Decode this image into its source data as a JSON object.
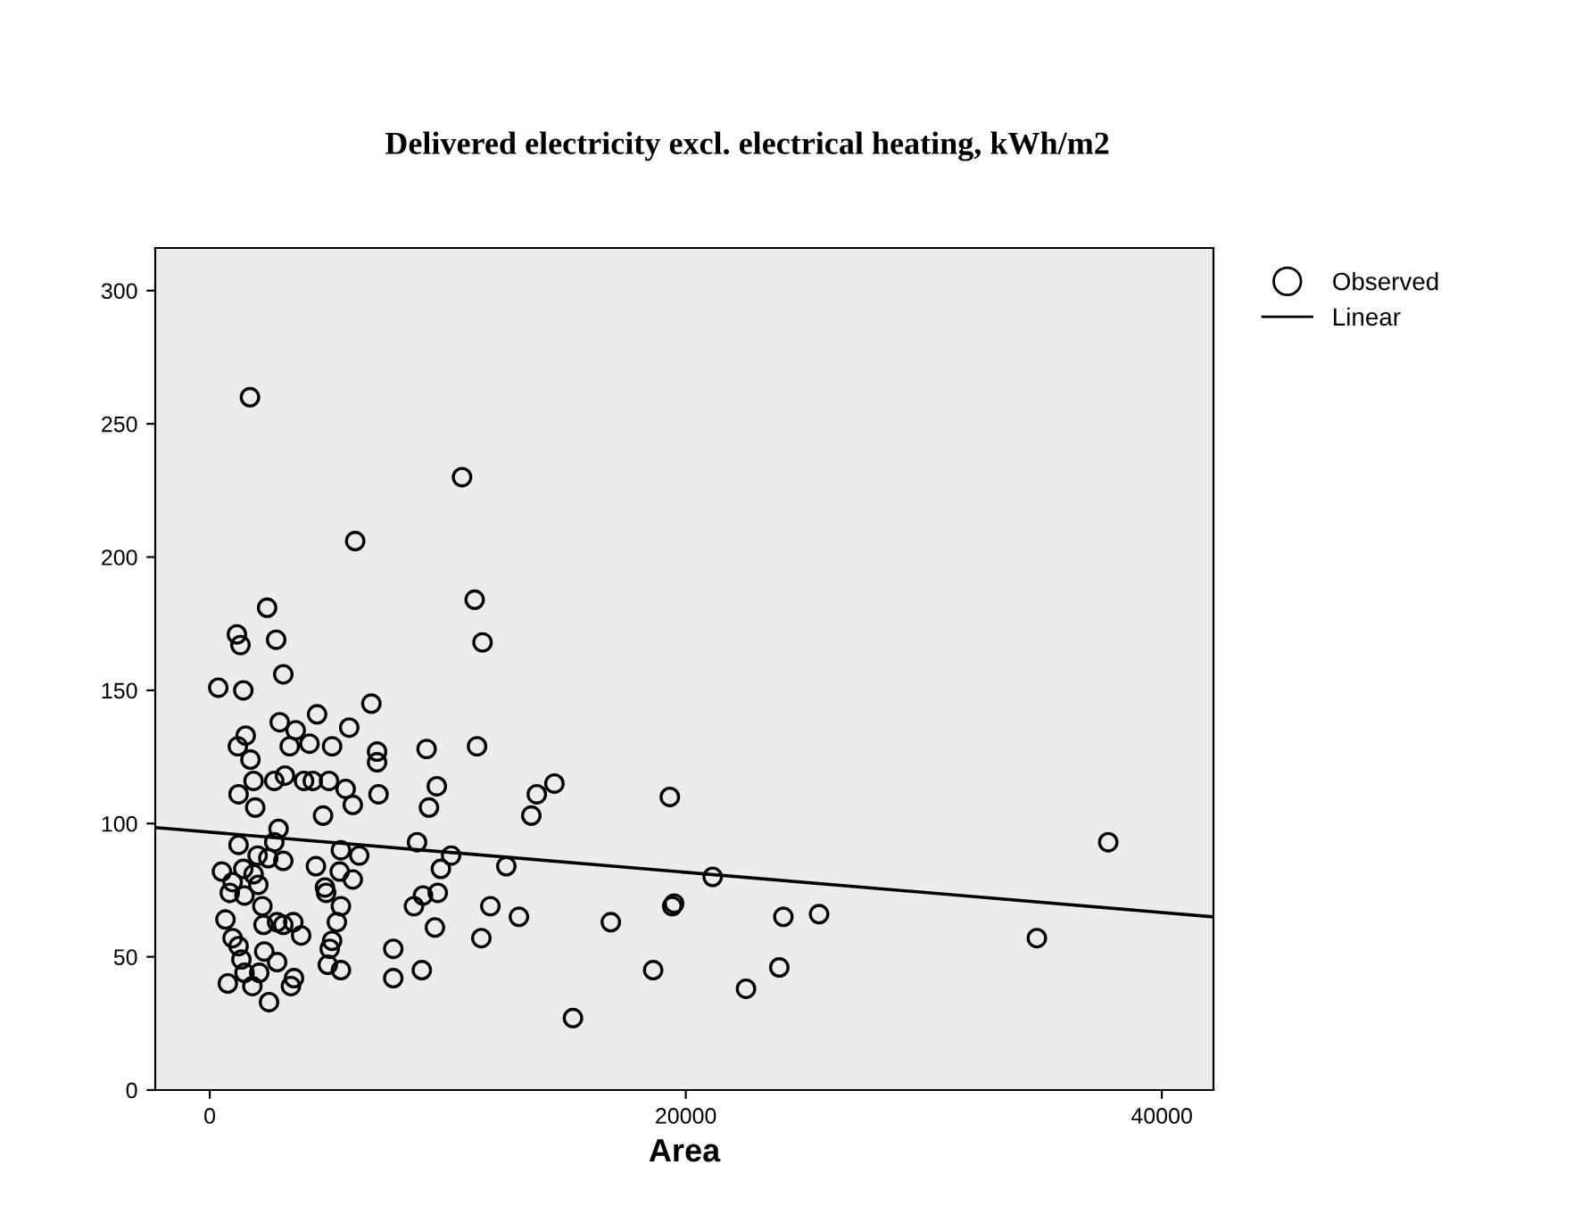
{
  "chart_data": {
    "type": "scatter",
    "title": "Delivered electricity excl. electrical heating, kWh/m2",
    "xlabel": "Area",
    "xlim": [
      -2290,
      42170
    ],
    "ylim": [
      0,
      316
    ],
    "xticks": [
      0,
      20000,
      40000
    ],
    "yticks": [
      0,
      50,
      100,
      150,
      200,
      250,
      300
    ],
    "grid": false,
    "legend": "top right",
    "series": [
      {
        "name": "Observed",
        "marker": "circle",
        "color": "#000000",
        "x": [
          1690,
          10600,
          6110,
          11130,
          2410,
          1140,
          1290,
          2790,
          11460,
          3090,
          360,
          1410,
          4510,
          6790,
          2940,
          3610,
          1510,
          5860,
          1180,
          3360,
          4190,
          5140,
          7030,
          9110,
          11230,
          1710,
          7030,
          1840,
          2710,
          3160,
          3960,
          4330,
          5010,
          1210,
          5710,
          7090,
          9540,
          1910,
          6010,
          9210,
          4760,
          2890,
          1210,
          2710,
          8710,
          2010,
          2460,
          3090,
          5510,
          6280,
          10140,
          12460,
          510,
          1410,
          4460,
          9710,
          1840,
          960,
          5460,
          6010,
          2040,
          840,
          1460,
          4840,
          4890,
          8960,
          9580,
          2210,
          5510,
          8580,
          11790,
          660,
          2260,
          2830,
          3090,
          3510,
          5340,
          9460,
          960,
          1210,
          3840,
          5140,
          11410,
          2290,
          7710,
          5040,
          4960,
          1330,
          2830,
          5510,
          1460,
          2080,
          8910,
          3540,
          3410,
          7710,
          760,
          1790,
          2490,
          14480,
          13740,
          13510,
          19330,
          21130,
          37750,
          12990,
          16850,
          19510,
          19430,
          24100,
          25600,
          34750,
          18630,
          23930,
          22530,
          15260
        ],
        "values": [
          260,
          230,
          206,
          184,
          181,
          171,
          167,
          169,
          168,
          156,
          151,
          150,
          141,
          145,
          138,
          135,
          133,
          136,
          129,
          129,
          130,
          129,
          127,
          128,
          129,
          124,
          123,
          116,
          116,
          118,
          116,
          116,
          116,
          111,
          113,
          111,
          114,
          106,
          107,
          106,
          103,
          98,
          92,
          93,
          93,
          88,
          87,
          86,
          90,
          88,
          88,
          84,
          82,
          83,
          84,
          83,
          81,
          78,
          82,
          79,
          77,
          74,
          73,
          76,
          74,
          73,
          74,
          69,
          69,
          69,
          69,
          64,
          62,
          63,
          62,
          63,
          63,
          61,
          57,
          54,
          58,
          56,
          57,
          52,
          53,
          53,
          47,
          49,
          48,
          45,
          44,
          44,
          45,
          42,
          39,
          42,
          40,
          39,
          33,
          115,
          111,
          103,
          110,
          80,
          93,
          65,
          63,
          70,
          69,
          65,
          66,
          57,
          45,
          46,
          38,
          27
        ]
      },
      {
        "name": "Linear",
        "type": "line",
        "color": "#000000",
        "x": [
          -2290,
          42170
        ],
        "values": [
          98.5,
          65
        ]
      }
    ]
  }
}
